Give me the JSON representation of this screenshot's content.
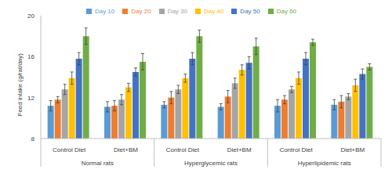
{
  "chart_data": {
    "type": "bar",
    "y_label": "Feed intake (g/rat/day)",
    "categories": [
      "Control Diet",
      "Diet+BM",
      "Control Diet",
      "Diet+BM",
      "Control Diet",
      "Diet+BM"
    ],
    "groups": [
      "Normal rats",
      "Hyperglycemic rats",
      "Hyperlipidemic rats"
    ],
    "series": [
      {
        "name": "Day 10",
        "color": "#5b9bd5",
        "values": [
          11.2,
          11.1,
          11.3,
          11.1,
          11.2,
          11.3
        ],
        "errors": [
          0.5,
          0.5,
          0.3,
          0.3,
          0.6,
          0.5
        ]
      },
      {
        "name": "Day 20",
        "color": "#ed7d31",
        "values": [
          11.8,
          11.2,
          12.0,
          12.1,
          11.8,
          11.6
        ],
        "errors": [
          0.3,
          0.5,
          0.6,
          0.6,
          0.4,
          0.6
        ]
      },
      {
        "name": "Day 30",
        "color": "#a5a5a5",
        "values": [
          12.8,
          11.8,
          12.8,
          13.4,
          12.8,
          12.1
        ],
        "errors": [
          0.5,
          0.5,
          0.4,
          0.5,
          0.3,
          0.3
        ]
      },
      {
        "name": "Day 40",
        "color": "#ffc000",
        "values": [
          13.9,
          13.0,
          13.9,
          14.7,
          13.9,
          13.2
        ],
        "errors": [
          0.6,
          0.4,
          0.4,
          0.5,
          0.6,
          0.6
        ]
      },
      {
        "name": "Day 50",
        "color": "#4472c4",
        "values": [
          15.8,
          14.5,
          15.8,
          15.4,
          15.8,
          14.3
        ],
        "errors": [
          0.6,
          0.4,
          0.6,
          0.6,
          0.6,
          0.5
        ]
      },
      {
        "name": "Day 60",
        "color": "#70ad47",
        "values": [
          18.0,
          15.5,
          18.0,
          17.0,
          17.4,
          15.0
        ],
        "errors": [
          0.8,
          0.8,
          0.6,
          0.8,
          0.3,
          0.3
        ]
      }
    ],
    "ylim": [
      8,
      20
    ],
    "yticks": [
      8,
      12,
      16,
      20
    ],
    "grid": false,
    "legend": "top"
  }
}
